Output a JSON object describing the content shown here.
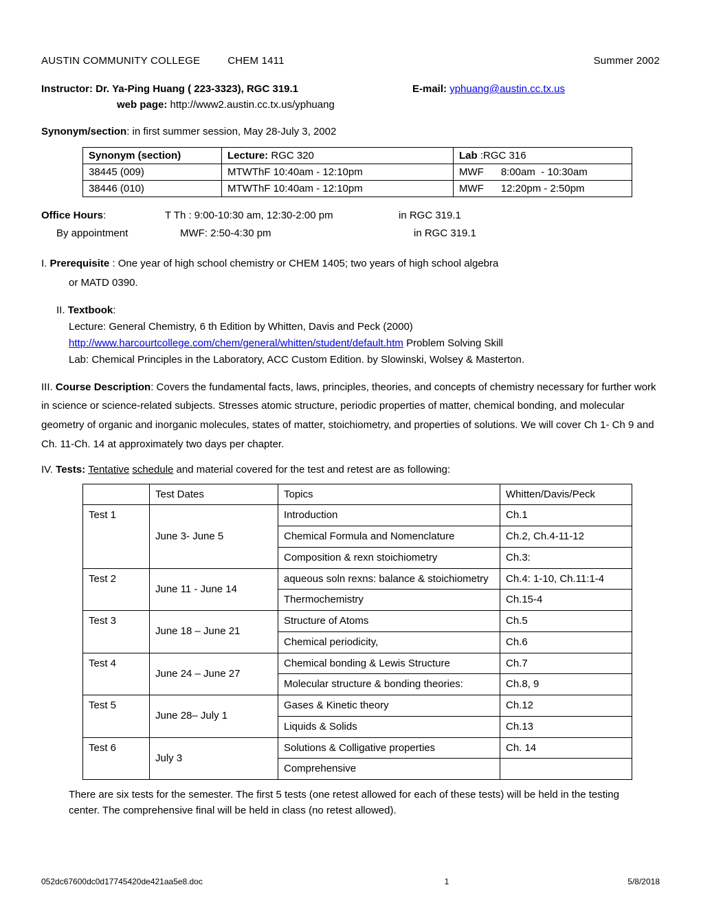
{
  "header": {
    "college": "AUSTIN COMMUNITY COLLEGE",
    "course": "CHEM 1411",
    "term": "Summer 2002"
  },
  "instructor": {
    "label": "Instructor: ",
    "name": "Dr. Ya-Ping Huang ( 223-3323), RGC 319.1",
    "email_label": "E-mail: ",
    "email": "yphuang@austin.cc.tx.us",
    "web_label": "web page: ",
    "web": "http://www2.austin.cc.tx.us/yphuang"
  },
  "synonym_line": {
    "label": "Synonym/section",
    "rest": ": in first summer session, May 28-July 3, 2002"
  },
  "sched_table": {
    "headers": {
      "a_label": "Synonym (section)",
      "b_label": "Lecture:",
      "b_val": " RGC  320",
      "c_label": "Lab ",
      "c_val": ":RGC  316"
    },
    "rows": [
      {
        "a": "38445 (009)",
        "b": "MTWThF  10:40am - 12:10pm",
        "c": "MWF      8:00am  - 10:30am"
      },
      {
        "a": "38446 (010)",
        "b": "MTWThF  10:40am - 12:10pm",
        "c": "MWF      12:20pm - 2:50pm"
      }
    ]
  },
  "office": {
    "title": "Office Hours",
    "row1_b": "T Th : 9:00-10:30 am, 12:30-2:00 pm",
    "row1_c": "in RGC 319.1",
    "row2_a": "By appointment",
    "row2_b": "MWF: 2:50-4:30 pm",
    "row2_c": "in RGC 319.1"
  },
  "prereq": {
    "num": "I. ",
    "label": "Prerequisite",
    "text1": " : One year of high school chemistry or CHEM 1405; two years of high school algebra",
    "text2": "or MATD 0390."
  },
  "textbook": {
    "num": "II. ",
    "label": "Textbook",
    "colon": ":",
    "lec": "Lecture: General Chemistry, 6 th Edition by Whitten, Davis and Peck (2000)",
    "link": "http://www.harcourtcollege.com/chem/general/whitten/student/default.htm",
    "after": "  Problem Solving Skill",
    "lab": "Lab: Chemical Principles in the Laboratory, ACC Custom Edition. by Slowinski, Wolsey & Masterton."
  },
  "coursedesc": {
    "num": "III. ",
    "label": "Course Description",
    "text": ": Covers the fundamental facts, laws, principles, theories, and concepts of chemistry necessary for further work in science or science-related subjects. Stresses atomic structure, periodic properties of matter, chemical bonding, and molecular geometry of organic and inorganic molecules, states of matter, stoichiometry, and properties of solutions. We will cover Ch 1- Ch 9 and Ch. 11-Ch. 14 at approximately two days per chapter."
  },
  "tests_intro": {
    "num": "IV. ",
    "label": "Tests:",
    "u1": "Tentative",
    "u2": "schedule",
    "rest": " and material covered for the test and retest are as following:"
  },
  "tests_table": {
    "headers": {
      "b": "Test Dates",
      "c": "Topics",
      "d": "Whitten/Davis/Peck"
    },
    "groups": [
      {
        "name": "Test 1",
        "date": "June 3- June 5",
        "rows": [
          {
            "c": "Introduction",
            "d": "Ch.1"
          },
          {
            "c": "Chemical Formula and Nomenclature",
            "d": "Ch.2, Ch.4-11-12"
          },
          {
            "c": "Composition & rexn stoichiometry",
            "d": "Ch.3:"
          }
        ]
      },
      {
        "name": "Test 2",
        "date": "June 11 - June 14",
        "rows": [
          {
            "c": "aqueous soln rexns: balance & stoichiometry",
            "d": "Ch.4: 1-10, Ch.11:1-4"
          },
          {
            "c": "Thermochemistry",
            "d": "Ch.15-4"
          }
        ]
      },
      {
        "name": "Test 3",
        "date": "June 18 – June 21",
        "rows": [
          {
            "c": "Structure of  Atoms",
            "d": "Ch.5"
          },
          {
            "c": "Chemical periodicity,",
            "d": "Ch.6"
          }
        ]
      },
      {
        "name": "Test 4",
        "date": "June 24 – June 27",
        "rows": [
          {
            "c": "Chemical  bonding & Lewis Structure",
            "d": "Ch.7"
          },
          {
            "c": "Molecular structure & bonding theories:",
            "d": "Ch.8, 9"
          }
        ]
      },
      {
        "name": "Test 5",
        "date": "June 28– July 1",
        "rows": [
          {
            "c": "Gases & Kinetic theory",
            "d": "Ch.12"
          },
          {
            "c": "Liquids & Solids",
            "d": "Ch.13"
          }
        ]
      },
      {
        "name": "Test 6",
        "date": "July 3",
        "rows": [
          {
            "c": "Solutions & Colligative properties",
            "d": "Ch. 14"
          },
          {
            "c": "Comprehensive",
            "d": ""
          }
        ]
      }
    ]
  },
  "tests_para": "There are six tests for the semester. The first 5 tests (one retest allowed for each of these tests) will be held in the testing center. The comprehensive final will be held in class (no retest allowed).",
  "footer": {
    "a": "052dc67600dc0d17745420de421aa5e8.doc",
    "b": "1",
    "c": "5/8/2018"
  }
}
